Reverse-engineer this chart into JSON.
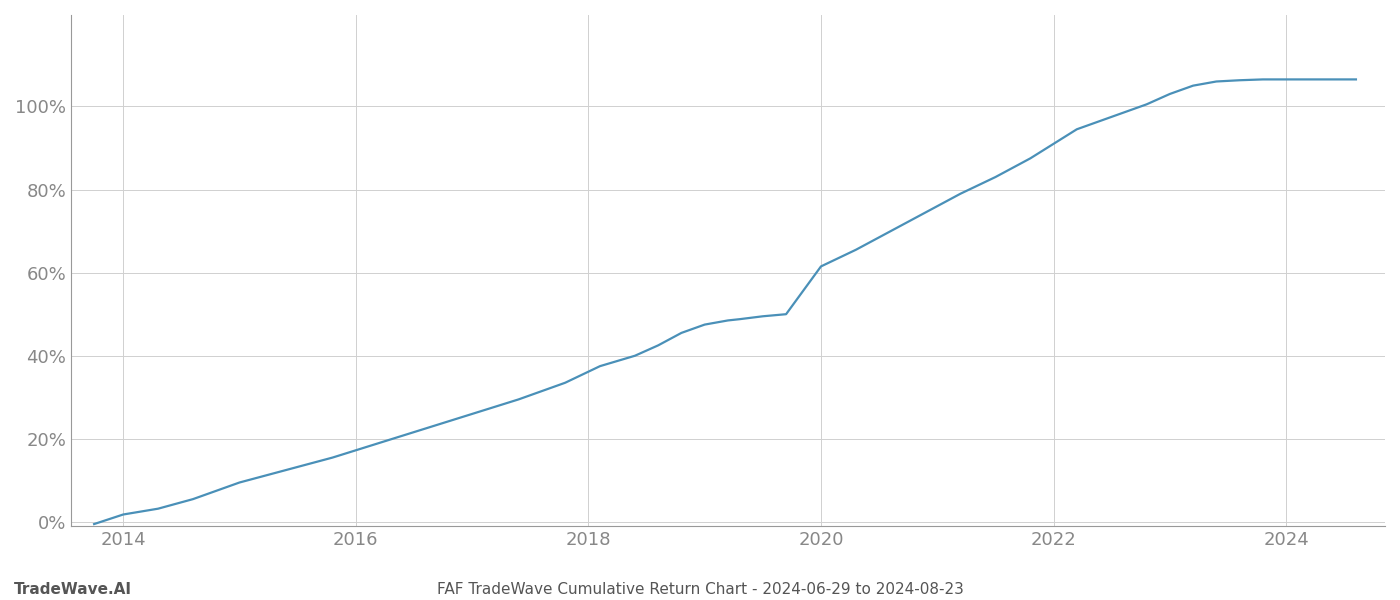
{
  "title": "FAF TradeWave Cumulative Return Chart - 2024-06-29 to 2024-08-23",
  "watermark": "TradeWave.AI",
  "line_color": "#4a90b8",
  "background_color": "#ffffff",
  "grid_color": "#d0d0d0",
  "tick_label_color": "#888888",
  "watermark_color": "#555555",
  "title_color": "#555555",
  "x_years": [
    2013.75,
    2014.0,
    2014.3,
    2014.6,
    2015.0,
    2015.4,
    2015.8,
    2016.2,
    2016.6,
    2017.0,
    2017.4,
    2017.8,
    2018.1,
    2018.4,
    2018.6,
    2018.8,
    2019.0,
    2019.1,
    2019.2,
    2019.3,
    2019.5,
    2019.7,
    2020.0,
    2020.3,
    2020.6,
    2020.9,
    2021.2,
    2021.5,
    2021.8,
    2022.0,
    2022.2,
    2022.5,
    2022.8,
    2023.0,
    2023.2,
    2023.4,
    2023.6,
    2023.8,
    2024.0,
    2024.3,
    2024.6
  ],
  "y_values": [
    -0.005,
    0.018,
    0.032,
    0.055,
    0.095,
    0.125,
    0.155,
    0.19,
    0.225,
    0.26,
    0.295,
    0.335,
    0.375,
    0.4,
    0.425,
    0.455,
    0.475,
    0.48,
    0.485,
    0.488,
    0.495,
    0.5,
    0.615,
    0.655,
    0.7,
    0.745,
    0.79,
    0.83,
    0.875,
    0.91,
    0.945,
    0.975,
    1.005,
    1.03,
    1.05,
    1.06,
    1.063,
    1.065,
    1.065,
    1.065,
    1.065
  ],
  "xlim": [
    2013.55,
    2024.85
  ],
  "ylim": [
    -0.01,
    1.22
  ],
  "yticks": [
    0.0,
    0.2,
    0.4,
    0.6,
    0.8,
    1.0
  ],
  "ytick_labels": [
    "0%",
    "20%",
    "40%",
    "60%",
    "80%",
    "100%"
  ],
  "xticks": [
    2014,
    2016,
    2018,
    2020,
    2022,
    2024
  ],
  "line_width": 1.6,
  "spine_color": "#999999",
  "tick_fontsize": 13,
  "footer_fontsize": 11
}
